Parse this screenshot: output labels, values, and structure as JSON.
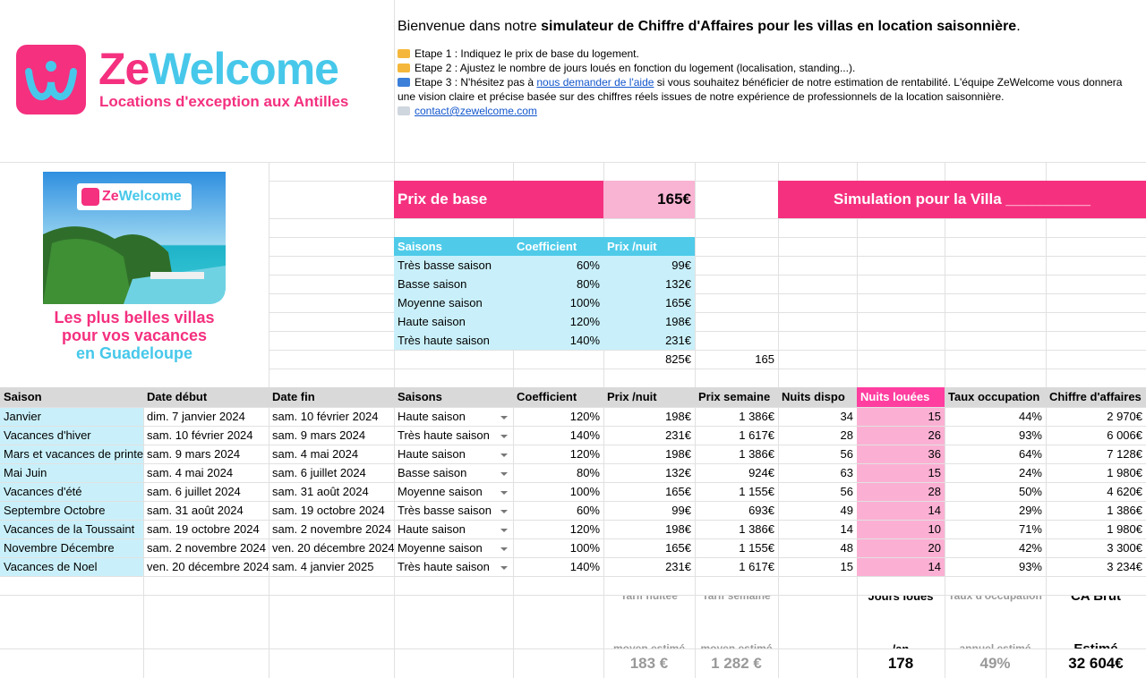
{
  "header": {
    "brand_prefix": "Ze",
    "brand_suffix": "Welcome",
    "tagline": "Locations d'exception aux Antilles",
    "welcome_prefix": "Bienvenue dans notre ",
    "welcome_bold": "simulateur de Chiffre d'Affaires pour les villas en location saisonnière",
    "welcome_suffix": ".",
    "step1": "Etape 1 : Indiquez le prix de base du logement.",
    "step2": "Etape 2 : Ajustez le nombre de jours loués en fonction du logement (localisation, standing...).",
    "step3_prefix": "Etape 3 : N'hésitez pas à ",
    "step3_link": "nous demander de l'aide",
    "step3_suffix": " si vous souhaitez bénéficier de notre estimation de rentabilité. L'équipe ZeWelcome vous donnera une vision claire et précise basée sur des chiffres réels issues de notre expérience de professionnels de la location saisonnière.",
    "contact": "contact@zewelcome.com"
  },
  "promo": {
    "brand_prefix": "Ze",
    "brand_suffix": "Welcome",
    "lines": [
      "Les plus belles villas",
      "pour vos vacances",
      "en Guadeloupe"
    ]
  },
  "base_price": {
    "label": "Prix de base",
    "value": "165€"
  },
  "simulation_title": "Simulation pour la Villa __________",
  "seasons_table": {
    "columns": [
      "Saisons",
      "Coefficient",
      "Prix /nuit"
    ],
    "rows": [
      [
        "Très basse saison",
        "60%",
        "99€"
      ],
      [
        "Basse saison",
        "80%",
        "132€"
      ],
      [
        "Moyenne saison",
        "100%",
        "165€"
      ],
      [
        "Haute saison",
        "120%",
        "198€"
      ],
      [
        "Très haute saison",
        "140%",
        "231€"
      ]
    ],
    "total": "825€",
    "total_check": "165"
  },
  "schedule": {
    "columns": [
      "Saison",
      "Date début",
      "Date fin",
      "Saisons",
      "Coefficient",
      "Prix /nuit",
      "Prix semaine",
      "Nuits dispo",
      "Nuits louées",
      "Taux occupation",
      "Chiffre d'affaires"
    ],
    "rows": [
      [
        "Janvier",
        "dim. 7 janvier 2024",
        "sam. 10 février 2024",
        "Haute saison",
        "120%",
        "198€",
        "1 386€",
        "34",
        "15",
        "44%",
        "2 970€"
      ],
      [
        "Vacances d'hiver",
        "sam. 10 février 2024",
        "sam. 9 mars 2024",
        "Très haute saison",
        "140%",
        "231€",
        "1 617€",
        "28",
        "26",
        "93%",
        "6 006€"
      ],
      [
        "Mars et vacances de printemps",
        "sam. 9 mars 2024",
        "sam. 4 mai 2024",
        "Haute saison",
        "120%",
        "198€",
        "1 386€",
        "56",
        "36",
        "64%",
        "7 128€"
      ],
      [
        "Mai Juin",
        "sam. 4 mai 2024",
        "sam. 6 juillet 2024",
        "Basse saison",
        "80%",
        "132€",
        "924€",
        "63",
        "15",
        "24%",
        "1 980€"
      ],
      [
        "Vacances d'été",
        "sam. 6 juillet 2024",
        "sam. 31 août 2024",
        "Moyenne saison",
        "100%",
        "165€",
        "1 155€",
        "56",
        "28",
        "50%",
        "4 620€"
      ],
      [
        "Septembre Octobre",
        "sam. 31 août 2024",
        "sam. 19 octobre 2024",
        "Très basse saison",
        "60%",
        "99€",
        "693€",
        "49",
        "14",
        "29%",
        "1 386€"
      ],
      [
        "Vacances de la Toussaint",
        "sam. 19 octobre 2024",
        "sam. 2 novembre 2024",
        "Haute saison",
        "120%",
        "198€",
        "1 386€",
        "14",
        "10",
        "71%",
        "1 980€"
      ],
      [
        "Novembre Décembre",
        "sam. 2 novembre 2024",
        "ven. 20 décembre 2024",
        "Moyenne saison",
        "100%",
        "165€",
        "1 155€",
        "48",
        "20",
        "42%",
        "3 300€"
      ],
      [
        "Vacances de Noel",
        "ven. 20 décembre 2024",
        "sam. 4 janvier 2025",
        "Très haute saison",
        "140%",
        "231€",
        "1 617€",
        "15",
        "14",
        "93%",
        "3 234€"
      ]
    ]
  },
  "summary": {
    "labels": [
      "Tarif nuitée moyen estimé",
      "Tarif semaine moyen estimé",
      "Jours loués /an",
      "Taux d'occupation annuel estimé",
      "CA Brut Estimé"
    ],
    "values": [
      "183 €",
      "1 282 €",
      "178",
      "49%",
      "32 604€"
    ]
  }
}
